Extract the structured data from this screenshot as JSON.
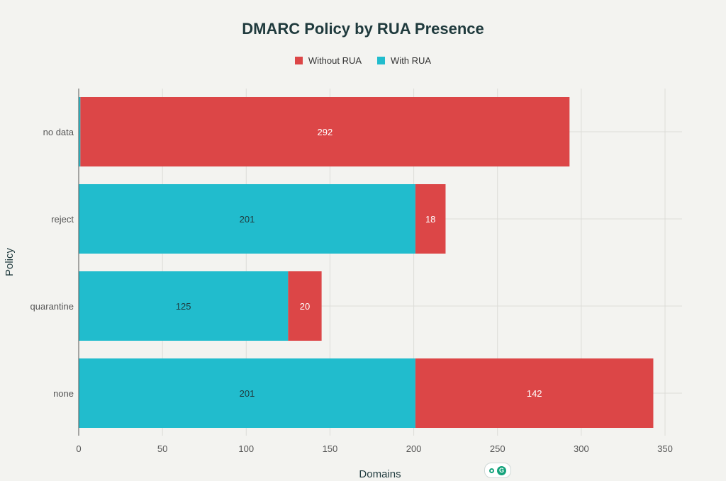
{
  "chart_data": {
    "type": "bar",
    "orientation": "horizontal",
    "stacked": true,
    "title": "DMARC Policy by RUA Presence",
    "xlabel": "Domains",
    "ylabel": "Policy",
    "categories": [
      "no data",
      "reject",
      "quarantine",
      "none"
    ],
    "series": [
      {
        "name": "With RUA",
        "color": "#21bccd",
        "values": [
          1,
          201,
          125,
          201
        ],
        "labels": [
          "",
          "201",
          "125",
          "201"
        ]
      },
      {
        "name": "Without RUA",
        "color": "#dc4647",
        "values": [
          292,
          18,
          20,
          142
        ],
        "labels": [
          "292",
          "18",
          "20",
          "142"
        ]
      }
    ],
    "legend_order": [
      "Without RUA",
      "With RUA"
    ],
    "legend_position": "top-center",
    "xlim": [
      0,
      360
    ],
    "xticks": [
      0,
      50,
      100,
      150,
      200,
      250,
      300,
      350
    ],
    "grid": true
  },
  "widget": {
    "icon": "grammarly-widget-icon",
    "letter": "G"
  }
}
